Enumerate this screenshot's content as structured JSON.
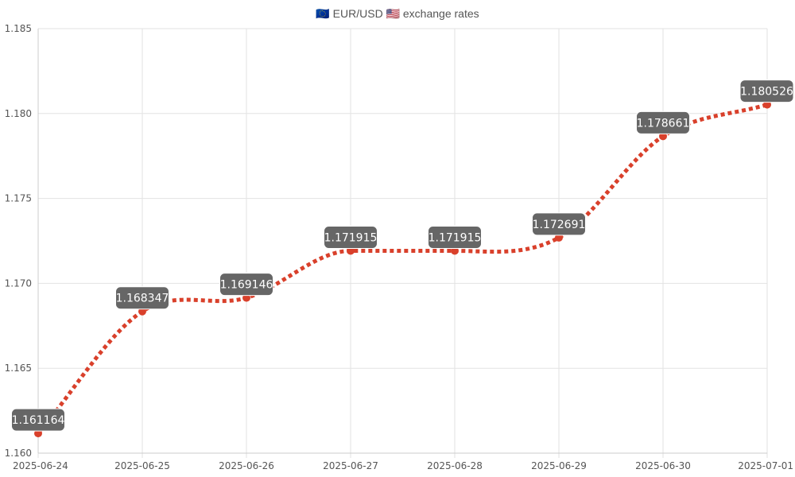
{
  "chart_data": {
    "type": "line",
    "title": "🇪🇺 EUR/USD 🇺🇸 exchange rates",
    "xlabel": "",
    "ylabel": "",
    "x": [
      "2025-06-24",
      "2025-06-25",
      "2025-06-26",
      "2025-06-27",
      "2025-06-28",
      "2025-06-29",
      "2025-06-30",
      "2025-07-01"
    ],
    "series": [
      {
        "values": [
          1.161164,
          1.168347,
          1.169146,
          1.171915,
          1.171915,
          1.172691,
          1.178661,
          1.180526
        ],
        "data_labels": [
          "1.161164",
          "1.168347",
          "1.169146",
          "1.171915",
          "1.171915",
          "1.172691",
          "1.178661",
          "1.180526"
        ]
      }
    ],
    "ylim": [
      1.16,
      1.185
    ],
    "y_ticks": [
      "1.160",
      "1.165",
      "1.170",
      "1.175",
      "1.180",
      "1.185"
    ],
    "y_tick_values": [
      1.16,
      1.165,
      1.17,
      1.175,
      1.18,
      1.185
    ],
    "grid": true,
    "legend": "none",
    "line_style": "dotted",
    "curve": "smooth",
    "colors": {
      "line": "#d9402b",
      "point": "#d9402b",
      "label_bg": "#666666",
      "label_text": "#ffffff",
      "grid": "#e2e2e2"
    }
  }
}
